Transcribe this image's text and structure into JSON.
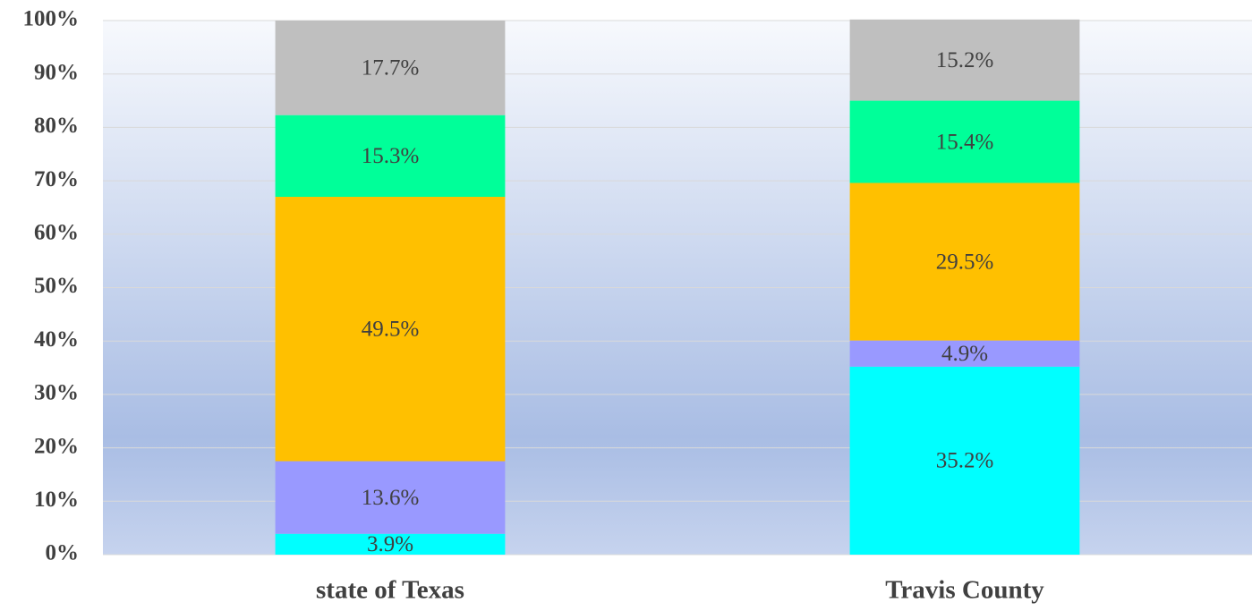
{
  "chart_data": {
    "type": "stacked_bar",
    "categories": [
      "state of Texas",
      "Travis County"
    ],
    "series": [
      {
        "color": "#00ffff",
        "values": [
          3.9,
          35.2
        ],
        "value_labels": [
          "3.9%",
          "35.2%"
        ]
      },
      {
        "color": "#9999ff",
        "values": [
          13.6,
          4.9
        ],
        "value_labels": [
          "13.6%",
          "4.9%"
        ]
      },
      {
        "color": "#ffc000",
        "values": [
          49.5,
          29.5
        ],
        "value_labels": [
          "49.5%",
          "29.5%"
        ]
      },
      {
        "color": "#00ff99",
        "values": [
          15.3,
          15.4
        ],
        "value_labels": [
          "15.3%",
          "15.4%"
        ]
      },
      {
        "color": "#bfbfbf",
        "values": [
          17.7,
          15.2
        ],
        "value_labels": [
          "17.7%",
          "15.2%"
        ]
      }
    ],
    "ylim": [
      0,
      100
    ],
    "yticks": [
      {
        "value": 0,
        "label": "0%"
      },
      {
        "value": 10,
        "label": "10%"
      },
      {
        "value": 20,
        "label": "20%"
      },
      {
        "value": 30,
        "label": "30%"
      },
      {
        "value": 40,
        "label": "40%"
      },
      {
        "value": 50,
        "label": "50%"
      },
      {
        "value": 60,
        "label": "60%"
      },
      {
        "value": 70,
        "label": "70%"
      },
      {
        "value": 80,
        "label": "80%"
      },
      {
        "value": 90,
        "label": "90%"
      },
      {
        "value": 100,
        "label": "100%"
      }
    ],
    "grid": true
  }
}
